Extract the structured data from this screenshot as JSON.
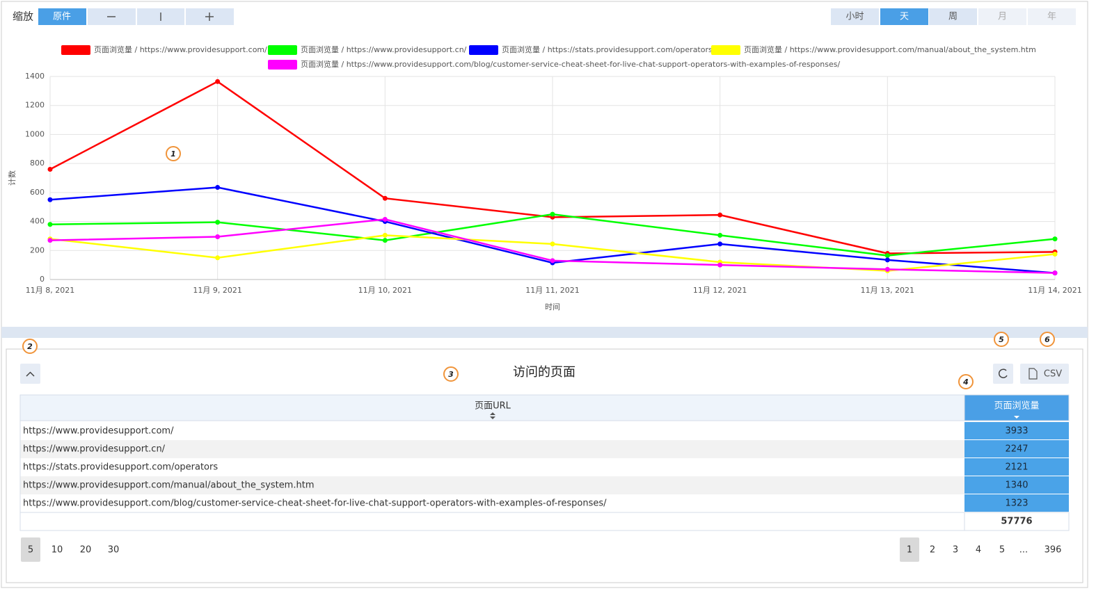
{
  "toolbar": {
    "zoom_label": "缩放",
    "zoom_original": "原件",
    "periods": [
      "小时",
      "天",
      "周",
      "月",
      "年"
    ]
  },
  "chart_data": {
    "type": "line",
    "y_label": "计数",
    "x_label": "时间",
    "categories": [
      "11月 8, 2021",
      "11月 9, 2021",
      "11月 10, 2021",
      "11月 11, 2021",
      "11月 12, 2021",
      "11月 13, 2021",
      "11月 14, 2021"
    ],
    "series": [
      {
        "name": "页面浏览量 / https://www.providesupport.com/",
        "color": "#ff0000",
        "values": [
          760,
          1365,
          560,
          430,
          445,
          180,
          190
        ]
      },
      {
        "name": "页面浏览量 / https://www.providesupport.cn/",
        "color": "#00ff00",
        "values": [
          380,
          395,
          270,
          450,
          305,
          165,
          280
        ]
      },
      {
        "name": "页面浏览量 / https://stats.providesupport.com/operators",
        "color": "#0000ff",
        "values": [
          550,
          635,
          400,
          115,
          245,
          135,
          45
        ]
      },
      {
        "name": "页面浏览量 / https://www.providesupport.com/manual/about_the_system.htm",
        "color": "#ffff00",
        "values": [
          280,
          150,
          305,
          245,
          120,
          60,
          175
        ]
      },
      {
        "name": "页面浏览量 / https://www.providesupport.com/blog/customer-service-cheat-sheet-for-live-chat-support-operators-with-examples-of-responses/",
        "color": "#ff00ff",
        "values": [
          270,
          295,
          415,
          130,
          100,
          70,
          45
        ]
      }
    ],
    "ylim": [
      0,
      1400
    ],
    "yticks": [
      0,
      200,
      400,
      600,
      800,
      1000,
      1200,
      1400
    ],
    "grid": true
  },
  "annotations": [
    "1",
    "2",
    "3",
    "4",
    "5",
    "6"
  ],
  "panel": {
    "title": "访问的页面",
    "csv": "CSV",
    "table": {
      "headers": [
        "页面URL",
        "页面浏览量"
      ],
      "rows": [
        [
          "https://www.providesupport.com/",
          3933
        ],
        [
          "https://www.providesupport.cn/",
          2247
        ],
        [
          "https://stats.providesupport.com/operators",
          2121
        ],
        [
          "https://www.providesupport.com/manual/about_the_system.htm",
          1340
        ],
        [
          "https://www.providesupport.com/blog/customer-service-cheat-sheet-for-live-chat-support-operators-with-examples-of-responses/",
          1323
        ]
      ],
      "total": 57776
    },
    "page_sizes": [
      5,
      10,
      20,
      30
    ],
    "pages": [
      1,
      2,
      3,
      4,
      5,
      "...",
      396
    ]
  }
}
